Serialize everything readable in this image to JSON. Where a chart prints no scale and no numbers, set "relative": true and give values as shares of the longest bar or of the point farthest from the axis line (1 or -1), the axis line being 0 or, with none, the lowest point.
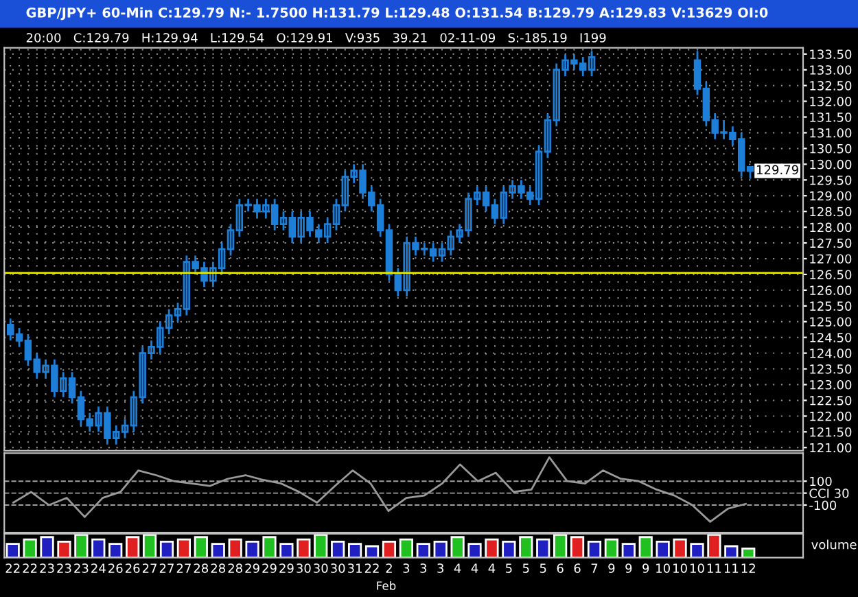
{
  "chart_data": [
    {
      "type": "candlestick",
      "title": "GBP/JPY+ 60-Min C:129.79 N:- 1.7500 H:131.79 L:129.48 O:131.54 B:129.79 A:129.83 V:13629 OI:0",
      "subtitle": "20:00   C:129.79   H:129.94   L:129.54   O:129.91   V:935   39.21   02-11-09   S:-185.19   I199",
      "color": "#1e7fd8",
      "tick_labels": "y",
      "grid": true,
      "categories": [
        null,
        null,
        null,
        null,
        null,
        null,
        null,
        null,
        null,
        null,
        null,
        null,
        null,
        null,
        null,
        null,
        null,
        null,
        null,
        null,
        null,
        null,
        null,
        null,
        null,
        null,
        null,
        null,
        null,
        null,
        null,
        null,
        null,
        null,
        null,
        null,
        null,
        null,
        null,
        null,
        null,
        null,
        null,
        null,
        null,
        null,
        null,
        null,
        null,
        null,
        null,
        null,
        null,
        null,
        null,
        null,
        null,
        null,
        null,
        null,
        null,
        null,
        null,
        null,
        null,
        null,
        null,
        null,
        null,
        null,
        null,
        null,
        null,
        null,
        null,
        null,
        null,
        null,
        null,
        null,
        null,
        null,
        null,
        null,
        null
      ],
      "ohlc": [
        [
          124.9,
          125.1,
          124.4,
          124.6
        ],
        [
          124.6,
          124.8,
          124.2,
          124.4
        ],
        [
          124.4,
          124.6,
          123.6,
          123.8
        ],
        [
          123.8,
          124.0,
          123.2,
          123.4
        ],
        [
          123.4,
          123.8,
          123.2,
          123.6
        ],
        [
          123.6,
          123.8,
          122.6,
          122.8
        ],
        [
          122.8,
          123.4,
          122.6,
          123.2
        ],
        [
          123.2,
          123.4,
          122.4,
          122.6
        ],
        [
          122.6,
          122.8,
          121.7,
          121.9
        ],
        [
          121.9,
          122.1,
          121.5,
          121.7
        ],
        [
          121.7,
          122.3,
          121.5,
          122.1
        ],
        [
          122.1,
          122.3,
          121.1,
          121.3
        ],
        [
          121.3,
          121.7,
          121.1,
          121.5
        ],
        [
          121.5,
          121.9,
          121.3,
          121.7
        ],
        [
          121.7,
          122.8,
          121.5,
          122.6
        ],
        [
          122.6,
          124.2,
          122.4,
          124.0
        ],
        [
          124.0,
          124.4,
          123.8,
          124.2
        ],
        [
          124.2,
          125.0,
          124.0,
          124.8
        ],
        [
          124.8,
          125.4,
          124.6,
          125.2
        ],
        [
          125.2,
          125.6,
          125.0,
          125.4
        ],
        [
          125.4,
          127.1,
          125.2,
          126.9
        ],
        [
          126.9,
          127.1,
          126.5,
          126.7
        ],
        [
          126.7,
          126.9,
          126.1,
          126.3
        ],
        [
          126.3,
          126.9,
          126.1,
          126.7
        ],
        [
          126.7,
          127.5,
          126.5,
          127.3
        ],
        [
          127.3,
          128.1,
          127.1,
          127.9
        ],
        [
          127.9,
          128.9,
          127.7,
          128.7
        ],
        [
          128.7,
          128.9,
          128.5,
          128.7
        ],
        [
          128.7,
          128.9,
          128.3,
          128.5
        ],
        [
          128.5,
          128.9,
          128.3,
          128.7
        ],
        [
          128.7,
          128.9,
          127.9,
          128.1
        ],
        [
          128.1,
          128.5,
          127.9,
          128.3
        ],
        [
          128.3,
          128.5,
          127.5,
          127.7
        ],
        [
          127.7,
          128.5,
          127.5,
          128.3
        ],
        [
          128.3,
          128.5,
          127.7,
          127.9
        ],
        [
          127.9,
          128.1,
          127.5,
          127.7
        ],
        [
          127.7,
          128.3,
          127.5,
          128.1
        ],
        [
          128.1,
          128.9,
          127.9,
          128.7
        ],
        [
          128.7,
          129.8,
          128.5,
          129.6
        ],
        [
          129.6,
          130.0,
          129.4,
          129.8
        ],
        [
          129.8,
          130.0,
          128.9,
          129.1
        ],
        [
          129.1,
          129.3,
          128.5,
          128.7
        ],
        [
          128.7,
          128.9,
          127.7,
          127.9
        ],
        [
          127.9,
          128.1,
          126.3,
          126.5
        ],
        [
          126.5,
          126.7,
          125.8,
          126.0
        ],
        [
          126.0,
          127.7,
          125.8,
          127.5
        ],
        [
          127.5,
          127.7,
          127.1,
          127.3
        ],
        [
          127.3,
          127.5,
          127.1,
          127.3
        ],
        [
          127.3,
          127.5,
          126.9,
          127.1
        ],
        [
          127.1,
          127.5,
          126.9,
          127.3
        ],
        [
          127.3,
          127.9,
          127.1,
          127.7
        ],
        [
          127.7,
          128.1,
          127.5,
          127.9
        ],
        [
          127.9,
          129.1,
          127.7,
          128.9
        ],
        [
          128.9,
          129.3,
          128.7,
          129.1
        ],
        [
          129.1,
          129.3,
          128.5,
          128.7
        ],
        [
          128.7,
          128.9,
          128.1,
          128.3
        ],
        [
          128.3,
          129.3,
          128.1,
          129.1
        ],
        [
          129.1,
          129.5,
          128.9,
          129.3
        ],
        [
          129.3,
          129.5,
          128.9,
          129.1
        ],
        [
          129.1,
          129.3,
          128.7,
          128.9
        ],
        [
          128.9,
          130.6,
          128.7,
          130.4
        ],
        [
          130.4,
          131.6,
          130.2,
          131.4
        ],
        [
          131.4,
          133.2,
          131.2,
          133.0
        ],
        [
          133.0,
          133.5,
          132.8,
          133.3
        ],
        [
          133.3,
          133.5,
          133.0,
          133.2
        ],
        [
          133.2,
          133.4,
          132.8,
          133.0
        ],
        [
          133.0,
          133.6,
          132.8,
          133.4
        ],
        null,
        null,
        null,
        null,
        null,
        null,
        null,
        null,
        null,
        null,
        null,
        [
          133.3,
          133.6,
          132.2,
          132.4
        ],
        [
          132.4,
          132.6,
          131.2,
          131.4
        ],
        [
          131.4,
          131.6,
          130.8,
          131.0
        ],
        [
          131.0,
          131.4,
          130.8,
          131.0
        ],
        [
          131.0,
          131.2,
          130.6,
          130.8
        ],
        [
          130.8,
          131.0,
          129.6,
          129.8
        ],
        [
          129.91,
          129.94,
          129.54,
          129.79
        ]
      ],
      "ylim": [
        120.9,
        133.7
      ],
      "yticks": [
        {
          "value": 121,
          "label": "121.00"
        },
        {
          "value": 121.5,
          "label": "121.50"
        },
        {
          "value": 122,
          "label": "122.00"
        },
        {
          "value": 122.5,
          "label": "122.50"
        },
        {
          "value": 123,
          "label": "123.00"
        },
        {
          "value": 123.5,
          "label": "123.50"
        },
        {
          "value": 124,
          "label": "124.00"
        },
        {
          "value": 124.5,
          "label": "124.50"
        },
        {
          "value": 125,
          "label": "125.00"
        },
        {
          "value": 125.5,
          "label": "125.50"
        },
        {
          "value": 126,
          "label": "126.00"
        },
        {
          "value": 126.5,
          "label": "126.50"
        },
        {
          "value": 127,
          "label": "127.00"
        },
        {
          "value": 127.5,
          "label": "127.50"
        },
        {
          "value": 128,
          "label": "128.00"
        },
        {
          "value": 128.5,
          "label": "128.50"
        },
        {
          "value": 129,
          "label": "129.00"
        },
        {
          "value": 129.5,
          "label": "129.50"
        },
        {
          "value": 130,
          "label": "130.00"
        },
        {
          "value": 130.5,
          "label": "130.50"
        },
        {
          "value": 131,
          "label": "131.00"
        },
        {
          "value": 131.5,
          "label": "131.50"
        },
        {
          "value": 132,
          "label": "132.00"
        },
        {
          "value": 132.5,
          "label": "132.50"
        },
        {
          "value": 133,
          "label": "133.00"
        },
        {
          "value": 133.5,
          "label": "133.50"
        }
      ],
      "ref_lines": [
        {
          "axis": "y",
          "value": 126.55,
          "color": "#e0e000"
        }
      ],
      "annotations": [
        "129.79"
      ]
    },
    {
      "type": "line",
      "tick_labels": "y",
      "grid": "y",
      "line_style": "solid",
      "categories": [
        null,
        null,
        null,
        null,
        null,
        null,
        null,
        null,
        null,
        null,
        null,
        null,
        null,
        null,
        null,
        null,
        null,
        null,
        null,
        null,
        null,
        null,
        null,
        null,
        null,
        null,
        null,
        null,
        null,
        null,
        null,
        null,
        null,
        null,
        null,
        null,
        null,
        null,
        null,
        null,
        null,
        null
      ],
      "series": [
        {
          "color": "#9a9a9a",
          "values": [
            -80,
            10,
            -100,
            -40,
            -200,
            -40,
            10,
            190,
            150,
            100,
            80,
            60,
            120,
            150,
            110,
            80,
            10,
            -80,
            60,
            190,
            80,
            -150,
            -40,
            -20,
            80,
            240,
            100,
            170,
            10,
            30,
            300,
            100,
            80,
            190,
            120,
            100,
            30,
            -20,
            -100,
            -240,
            -130,
            -90
          ]
        }
      ],
      "ylim": [
        -330,
        335
      ],
      "yticks": [
        {
          "value": 100,
          "label": "100"
        },
        {
          "value": 0,
          "label": "CCI 30"
        },
        {
          "value": -100,
          "label": "-100"
        }
      ]
    },
    {
      "type": "bar",
      "relative": true,
      "tick_labels": "x",
      "ylabel": "volume",
      "categories": [
        "22",
        "22",
        "23",
        "23",
        "23",
        "24",
        "26",
        "26",
        "27",
        "27",
        "27",
        "28",
        "28",
        "28",
        "29",
        "29",
        "29",
        "30",
        "30",
        "30",
        "31",
        "22",
        "2",
        "3",
        "3",
        "3",
        "4",
        "4",
        "4",
        "5",
        "5",
        "5",
        "6",
        "6",
        "7",
        "9",
        "9",
        "9",
        "10",
        "10",
        "10",
        "11",
        "11",
        "12"
      ],
      "values": [
        0.6,
        0.8,
        0.9,
        0.7,
        1.0,
        0.8,
        0.6,
        0.9,
        1.0,
        0.7,
        0.8,
        0.9,
        0.6,
        0.8,
        0.7,
        0.9,
        0.6,
        0.8,
        1.0,
        0.7,
        0.6,
        0.5,
        0.7,
        0.8,
        0.6,
        0.7,
        0.9,
        0.6,
        0.8,
        0.7,
        0.9,
        0.8,
        1.0,
        0.9,
        0.7,
        0.8,
        0.6,
        0.9,
        0.7,
        0.8,
        0.6,
        1.0,
        0.5,
        0.4
      ],
      "colors": [
        "#2020c0",
        "#20c020",
        "#2020c0",
        "#e02020",
        "#20c020",
        "#2020c0",
        "#2020c0",
        "#e02020",
        "#20c020",
        "#2020c0",
        "#e02020",
        "#20c020",
        "#2020c0",
        "#e02020",
        "#2020c0",
        "#20c020",
        "#2020c0",
        "#e02020",
        "#20c020",
        "#2020c0",
        "#2020c0",
        "#2020c0",
        "#e02020",
        "#20c020",
        "#2020c0",
        "#2020c0",
        "#20c020",
        "#2020c0",
        "#e02020",
        "#2020c0",
        "#20c020",
        "#2020c0",
        "#20c020",
        "#e02020",
        "#2020c0",
        "#20c020",
        "#2020c0",
        "#20c020",
        "#2020c0",
        "#e02020",
        "#2020c0",
        "#e02020",
        "#2020c0",
        "#20c020"
      ],
      "annotations": [
        "Feb"
      ]
    }
  ]
}
